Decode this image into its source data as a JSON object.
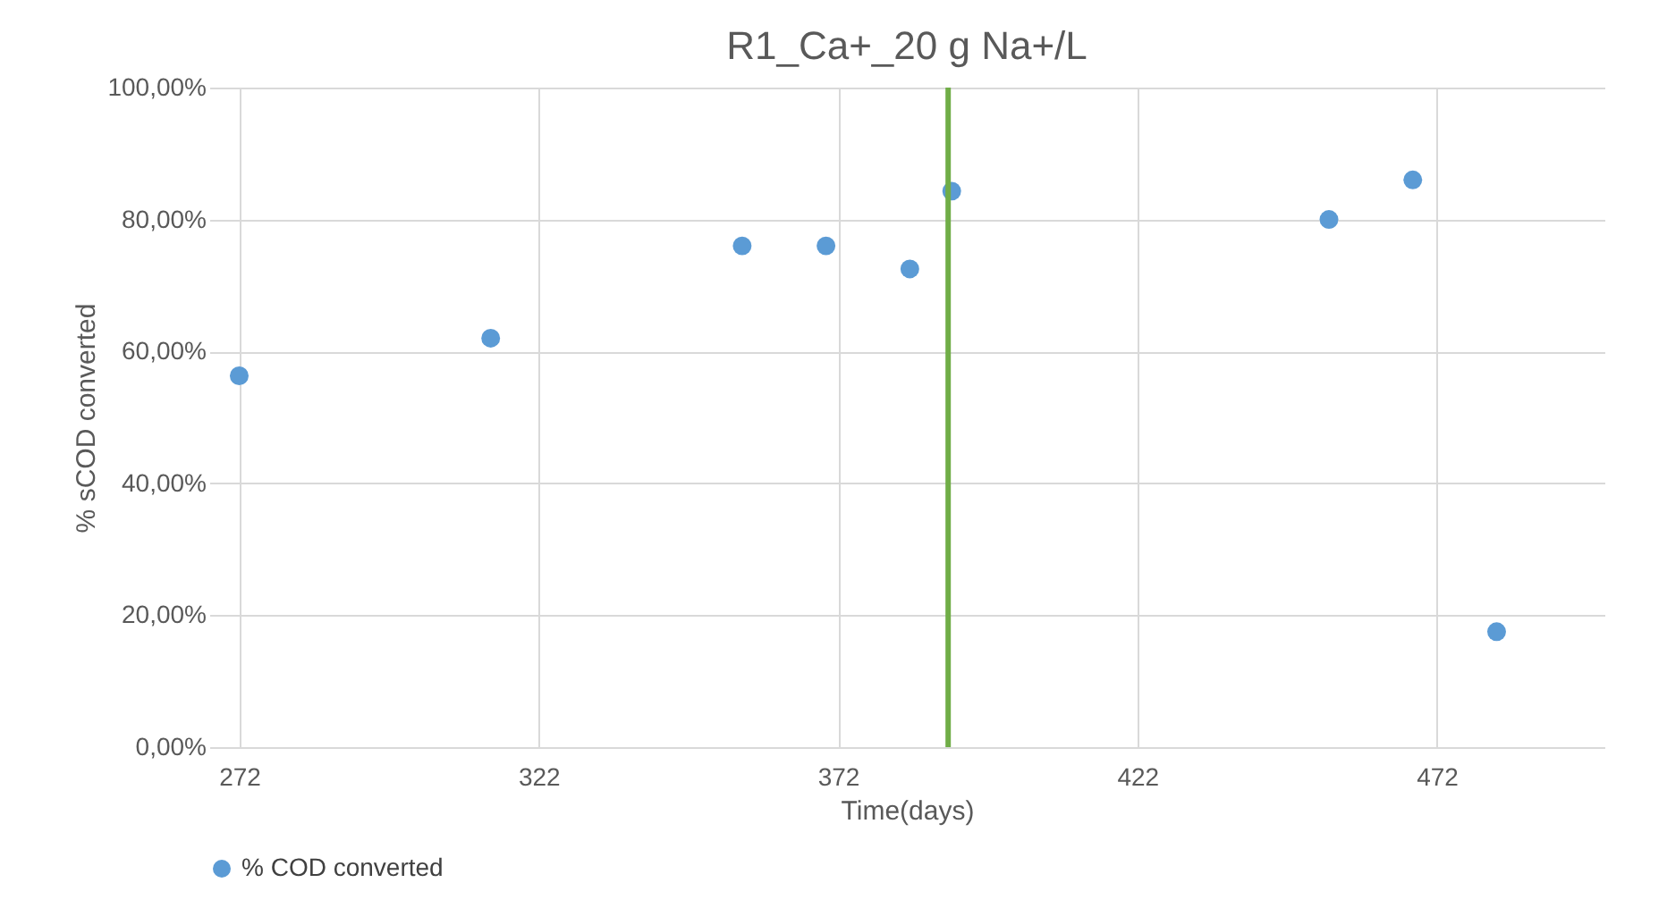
{
  "chart_data": {
    "type": "scatter",
    "title": "R1_Ca+_20 g Na+/L",
    "xlabel": "Time(days)",
    "ylabel": "% sCOD converted",
    "x": [
      272,
      314,
      356,
      370,
      384,
      391,
      454,
      468,
      482
    ],
    "series": [
      {
        "name": "% COD converted",
        "color": "#5b9bd5",
        "values": [
          56.3,
          62,
          76,
          76,
          72.5,
          84.3,
          80,
          86,
          17.5
        ]
      }
    ],
    "xlim": [
      267,
      500
    ],
    "xticks": [
      272,
      322,
      372,
      422,
      472
    ],
    "ylim": [
      0,
      100
    ],
    "yticks": [
      {
        "value": 0,
        "label": "0,00%"
      },
      {
        "value": 20,
        "label": "20,00%"
      },
      {
        "value": 40,
        "label": "40,00%"
      },
      {
        "value": 60,
        "label": "60,00%"
      },
      {
        "value": 80,
        "label": "80,00%"
      },
      {
        "value": 100,
        "label": "100,00%"
      }
    ],
    "ref_lines": [
      {
        "axis": "x",
        "value": 390.4,
        "color": "#70ad47"
      }
    ],
    "grid": true,
    "legend": "bottom",
    "marker": "circle"
  }
}
